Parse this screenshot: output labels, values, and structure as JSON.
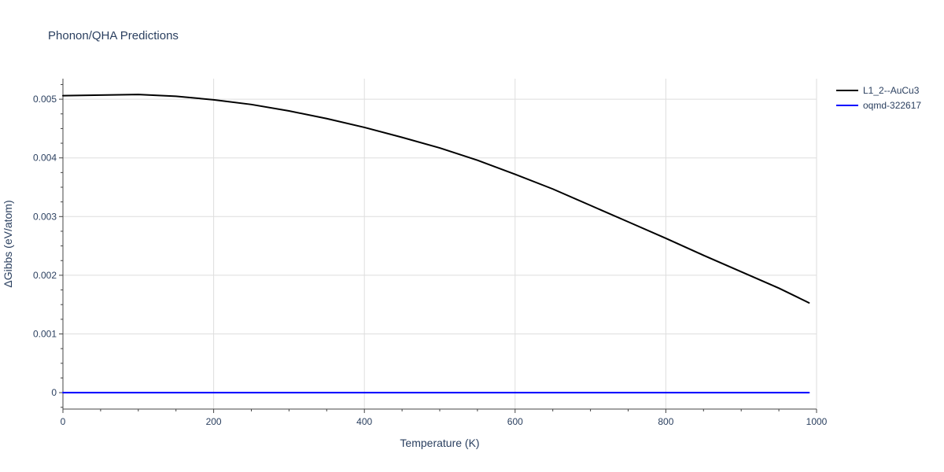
{
  "chart_data": {
    "type": "line",
    "title": "Phonon/QHA Predictions",
    "xlabel": "Temperature (K)",
    "ylabel": "ΔGibbs (eV/atom)",
    "xlim": [
      0,
      1000
    ],
    "ylim": [
      -0.00028,
      0.00535
    ],
    "x_ticks": [
      0,
      200,
      400,
      600,
      800,
      1000
    ],
    "x_tick_labels": [
      "0",
      "200",
      "400",
      "600",
      "800",
      "1000"
    ],
    "y_ticks": [
      0,
      0.001,
      0.002,
      0.003,
      0.004,
      0.005
    ],
    "y_tick_labels": [
      "0",
      "0.001",
      "0.002",
      "0.003",
      "0.004",
      "0.005"
    ],
    "grid": true,
    "legend_position": "top-right",
    "series": [
      {
        "name": "L1_2--AuCu3",
        "color": "#000000",
        "x": [
          0,
          50,
          100,
          150,
          200,
          250,
          300,
          350,
          400,
          450,
          500,
          550,
          600,
          650,
          700,
          750,
          800,
          850,
          900,
          950,
          990
        ],
        "y": [
          0.00506,
          0.00507,
          0.00508,
          0.00505,
          0.00499,
          0.00491,
          0.0048,
          0.00467,
          0.00452,
          0.00435,
          0.00417,
          0.00396,
          0.00372,
          0.00347,
          0.00319,
          0.00291,
          0.00263,
          0.00234,
          0.00206,
          0.00178,
          0.00153
        ]
      },
      {
        "name": "oqmd-322617",
        "color": "#0000ff",
        "x": [
          0,
          990
        ],
        "y": [
          0,
          0
        ]
      }
    ]
  }
}
